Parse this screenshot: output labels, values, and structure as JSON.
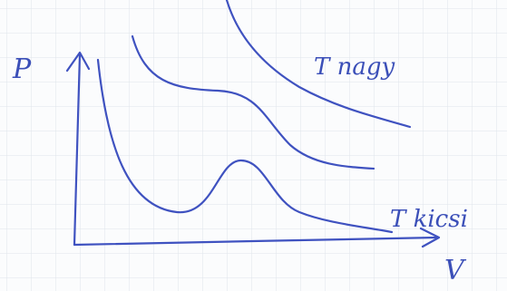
{
  "axes": {
    "y_label": "P",
    "x_label": "V"
  },
  "curves": [
    {
      "label": "T nagy"
    },
    {
      "label": "T kicsi"
    }
  ]
}
